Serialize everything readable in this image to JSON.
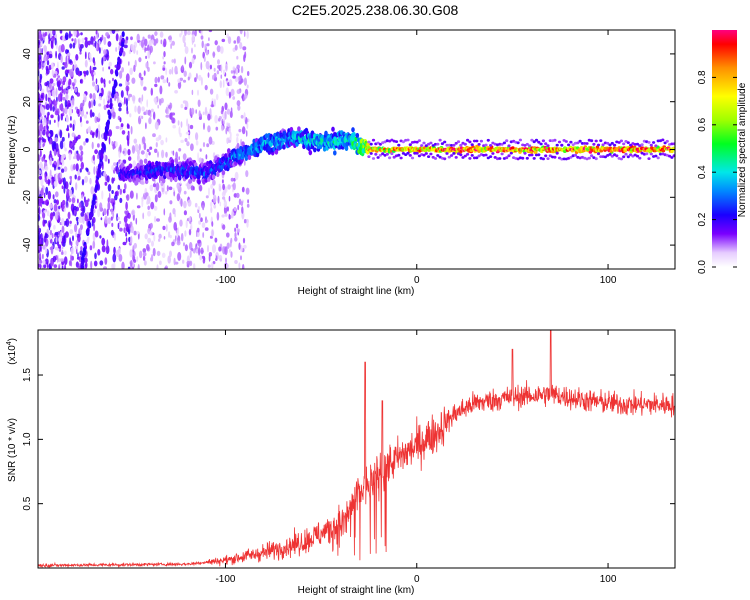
{
  "title": "C2E5.2025.238.06.30.G08",
  "chart_data": [
    {
      "type": "heatmap",
      "xlabel": "Height of straight line (km)",
      "ylabel": "Frequency (Hz)",
      "xlim": [
        -198,
        135
      ],
      "ylim": [
        -50,
        50
      ],
      "x_ticks": [
        -100,
        0,
        100
      ],
      "x_tick_labels": [
        "-100",
        "0",
        "100"
      ],
      "y_ticks": [
        -40,
        -20,
        0,
        20,
        40
      ],
      "y_tick_labels": [
        "-40",
        "-20",
        "0",
        "20",
        "40"
      ],
      "colorbar": {
        "label": "Normalized spectral amplitude",
        "range": [
          0,
          1
        ],
        "ticks": [
          0.0,
          0.2,
          0.4,
          0.6,
          0.8
        ],
        "tick_labels": [
          "0.0",
          "0.2",
          "0.4",
          "0.6",
          "0.8"
        ]
      },
      "ridge": {
        "description_points_x": [
          -150,
          -130,
          -110,
          -95,
          -80,
          -65,
          -55,
          -45,
          -35,
          -25,
          -15,
          0,
          20,
          60,
          100,
          135
        ],
        "description_points_y": [
          -10,
          -8,
          -10,
          -3,
          2,
          5,
          4,
          3,
          4,
          0,
          0,
          0,
          0,
          0,
          0,
          0
        ],
        "amplitude": [
          0.25,
          0.3,
          0.3,
          0.35,
          0.4,
          0.4,
          0.45,
          0.45,
          0.45,
          0.8,
          0.85,
          0.9,
          0.95,
          0.95,
          0.95,
          0.95
        ]
      }
    },
    {
      "type": "line",
      "xlabel": "Height of straight line (km)",
      "ylabel": "SNR (10 * v/v)",
      "y_scale_label": "(x10",
      "y_scale_exp": "4",
      "xlim": [
        -198,
        135
      ],
      "ylim": [
        0,
        1.85
      ],
      "x_ticks": [
        -100,
        0,
        100
      ],
      "x_tick_labels": [
        "-100",
        "0",
        "100"
      ],
      "y_ticks": [
        0.5,
        1.0,
        1.5
      ],
      "y_tick_labels": [
        "0.5",
        "1.0",
        "1.5"
      ],
      "series": [
        {
          "name": "SNR",
          "color": "#ee3333",
          "trend_x": [
            -198,
            -120,
            -100,
            -80,
            -60,
            -45,
            -38,
            -32,
            -25,
            -15,
            -5,
            10,
            20,
            30,
            50,
            70,
            90,
            110,
            135
          ],
          "trend_y": [
            0.02,
            0.03,
            0.06,
            0.12,
            0.2,
            0.3,
            0.35,
            0.55,
            0.65,
            0.8,
            0.9,
            1.05,
            1.2,
            1.28,
            1.33,
            1.35,
            1.3,
            1.27,
            1.27
          ],
          "peaks_x": [
            -27,
            -18,
            70,
            50
          ],
          "peaks_y": [
            1.6,
            1.3,
            1.9,
            1.7
          ]
        }
      ]
    }
  ]
}
